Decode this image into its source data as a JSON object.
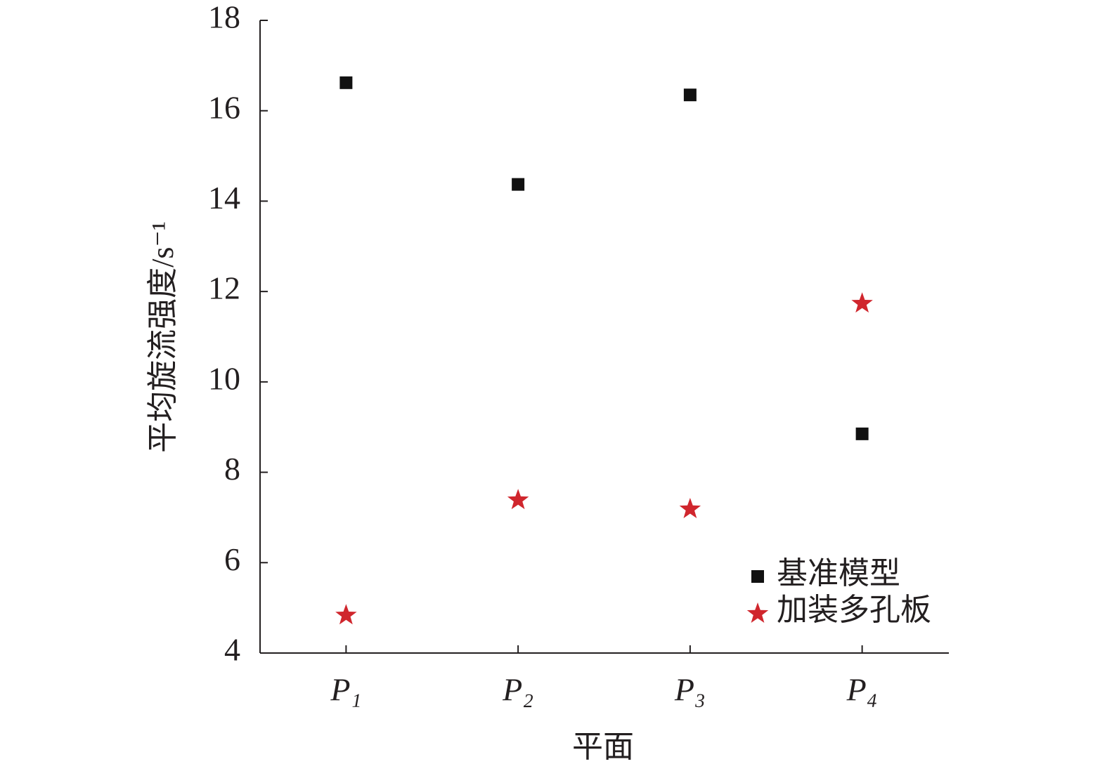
{
  "chart_data": {
    "type": "scatter",
    "x_label": "平面",
    "y_label": "平均旋流强度/s⁻¹",
    "categories": [
      "P₁",
      "P₂",
      "P₃",
      "P₄"
    ],
    "series": [
      {
        "name": "基准模型",
        "color": "#111111",
        "marker": "square",
        "values": [
          16.62,
          14.37,
          16.35,
          8.85
        ]
      },
      {
        "name": "加装多孔板",
        "color": "#d0262d",
        "marker": "star",
        "values": [
          4.85,
          7.4,
          7.2,
          11.75
        ]
      }
    ],
    "ylim": [
      4,
      18
    ],
    "yticks": [
      4,
      6,
      8,
      10,
      12,
      14,
      16,
      18
    ],
    "legend": "lower right"
  }
}
